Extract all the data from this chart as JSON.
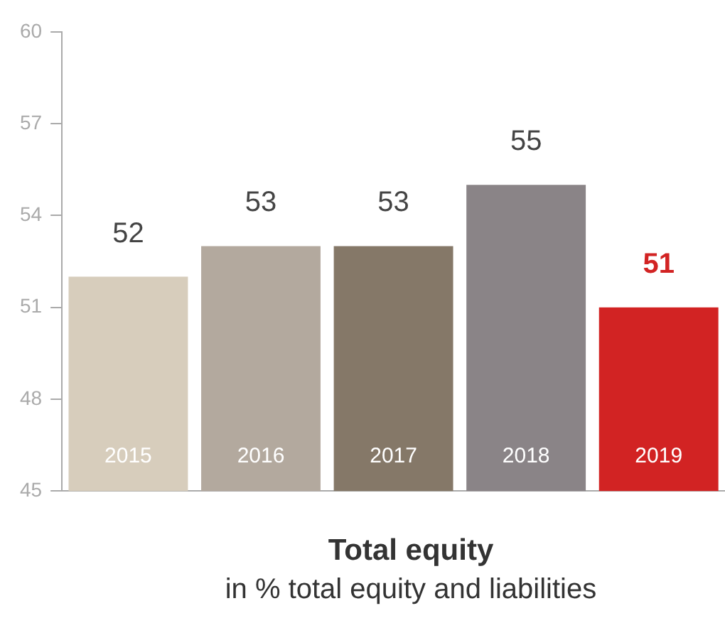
{
  "chart_data": {
    "type": "bar",
    "title": "Total equity",
    "subtitle": "in % total equity and liabilities",
    "categories": [
      "2015",
      "2016",
      "2017",
      "2018",
      "2019"
    ],
    "values": [
      52,
      53,
      53,
      55,
      51
    ],
    "colors": [
      "#d7cdbc",
      "#b3a99e",
      "#857868",
      "#8a8487",
      "#d22323"
    ],
    "ylim": [
      45,
      60
    ],
    "yticks": [
      45,
      48,
      51,
      54,
      57,
      60
    ],
    "data_labels": true,
    "grid": false,
    "legend": false
  }
}
